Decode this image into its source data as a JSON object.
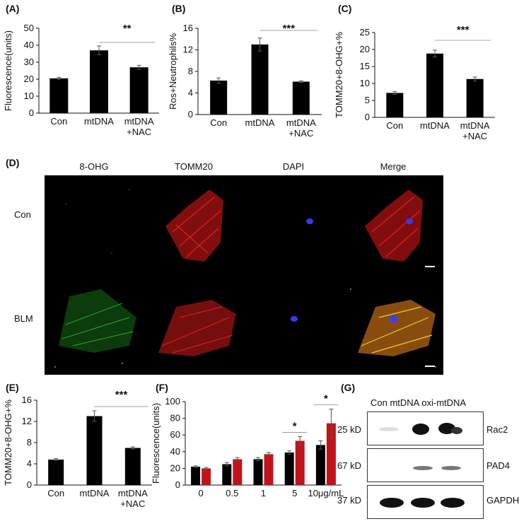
{
  "panels": {
    "A": {
      "label": "(A)"
    },
    "B": {
      "label": "(B)"
    },
    "C": {
      "label": "(C)"
    },
    "D": {
      "label": "(D)"
    },
    "E": {
      "label": "(E)"
    },
    "F": {
      "label": "(F)"
    },
    "G": {
      "label": "(G)"
    }
  },
  "chart_data": [
    {
      "id": "A",
      "type": "bar",
      "categories": [
        "Con",
        "mtDNA",
        "mtDNA\n+NAC"
      ],
      "values": [
        20.5,
        37,
        27
      ],
      "errors": [
        0.6,
        2.6,
        1.2
      ],
      "ylabel": "Fluorescence(units)",
      "ylim": [
        0,
        50
      ],
      "yticks": [
        0,
        10,
        20,
        30,
        40,
        50
      ],
      "significance": "**",
      "bar_color": "#000000"
    },
    {
      "id": "B",
      "type": "bar",
      "categories": [
        "Con",
        "mtDNA",
        "mtDNA\n+NAC"
      ],
      "values": [
        6.3,
        13,
        6.1
      ],
      "errors": [
        0.5,
        1.2,
        0.15
      ],
      "ylabel": "Ros+Neutrophils%",
      "ylim": [
        0,
        16
      ],
      "yticks": [
        0,
        4,
        8,
        12,
        16
      ],
      "significance": "***",
      "bar_color": "#000000"
    },
    {
      "id": "C",
      "type": "bar",
      "categories": [
        "Con",
        "mtDNA",
        "mtDNA\n+NAC"
      ],
      "values": [
        7.2,
        18.8,
        11.3
      ],
      "errors": [
        0.4,
        1.0,
        0.6
      ],
      "ylabel": "TOMM20+8-OHG+%",
      "ylim": [
        0,
        25
      ],
      "yticks": [
        0,
        5,
        10,
        15,
        20,
        25
      ],
      "significance": "***",
      "bar_color": "#000000"
    },
    {
      "id": "E",
      "type": "bar",
      "categories": [
        "Con",
        "mtDNA",
        "mtDNA\n+NAC"
      ],
      "values": [
        4.8,
        13,
        7
      ],
      "errors": [
        0.2,
        1.0,
        0.2
      ],
      "ylabel": "TOMM20+8-OHG+%",
      "ylim": [
        0,
        16
      ],
      "yticks": [
        0,
        4,
        8,
        12,
        16
      ],
      "significance": "***",
      "bar_color": "#000000"
    },
    {
      "id": "F",
      "type": "bar",
      "categories": [
        "0",
        "0.5",
        "1",
        "5",
        "10μg/mL"
      ],
      "series": [
        {
          "values": [
            22,
            25,
            31,
            39,
            48
          ],
          "errors": [
            1,
            2,
            2,
            2,
            5
          ],
          "color": "#000000"
        },
        {
          "values": [
            20,
            31,
            37,
            53,
            74
          ],
          "errors": [
            1,
            2,
            2,
            5,
            17
          ],
          "color": "#c0141c"
        }
      ],
      "ylabel": "Fluorescence(units)",
      "ylim": [
        0,
        100
      ],
      "yticks": [
        0,
        20,
        40,
        60,
        80,
        100
      ],
      "significance_marks": [
        {
          "category": "5",
          "mark": "*"
        },
        {
          "category": "10μg/mL",
          "mark": "*"
        }
      ]
    }
  ],
  "microscopy": {
    "columns": [
      "8-OHG",
      "TOMM20",
      "DAPI",
      "Merge"
    ],
    "rows": [
      "Con",
      "BLM"
    ]
  },
  "blot": {
    "header": "Con mtDNA oxi-mtDNA",
    "bands": [
      {
        "kd": "25 kD",
        "name": "Rac2"
      },
      {
        "kd": "67 kD",
        "name": "PAD4"
      },
      {
        "kd": "37 kD",
        "name": "GAPDH"
      }
    ]
  }
}
